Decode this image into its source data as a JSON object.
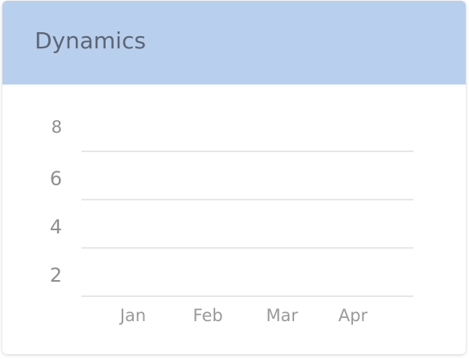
{
  "card": {
    "title": "Dynamics"
  },
  "chart_data": {
    "type": "line",
    "title": "",
    "xlabel": "",
    "ylabel": "",
    "categories": [
      "Jan",
      "Feb",
      "Mar",
      "Apr"
    ],
    "y_ticks": [
      "8",
      "6",
      "4",
      "2"
    ],
    "ylim": [
      1,
      8
    ],
    "grid": true,
    "series": [],
    "colors": {
      "header_background": "#b9cfee",
      "gridline": "#cfcfcf",
      "tick_text": "#9a9a9a"
    }
  }
}
